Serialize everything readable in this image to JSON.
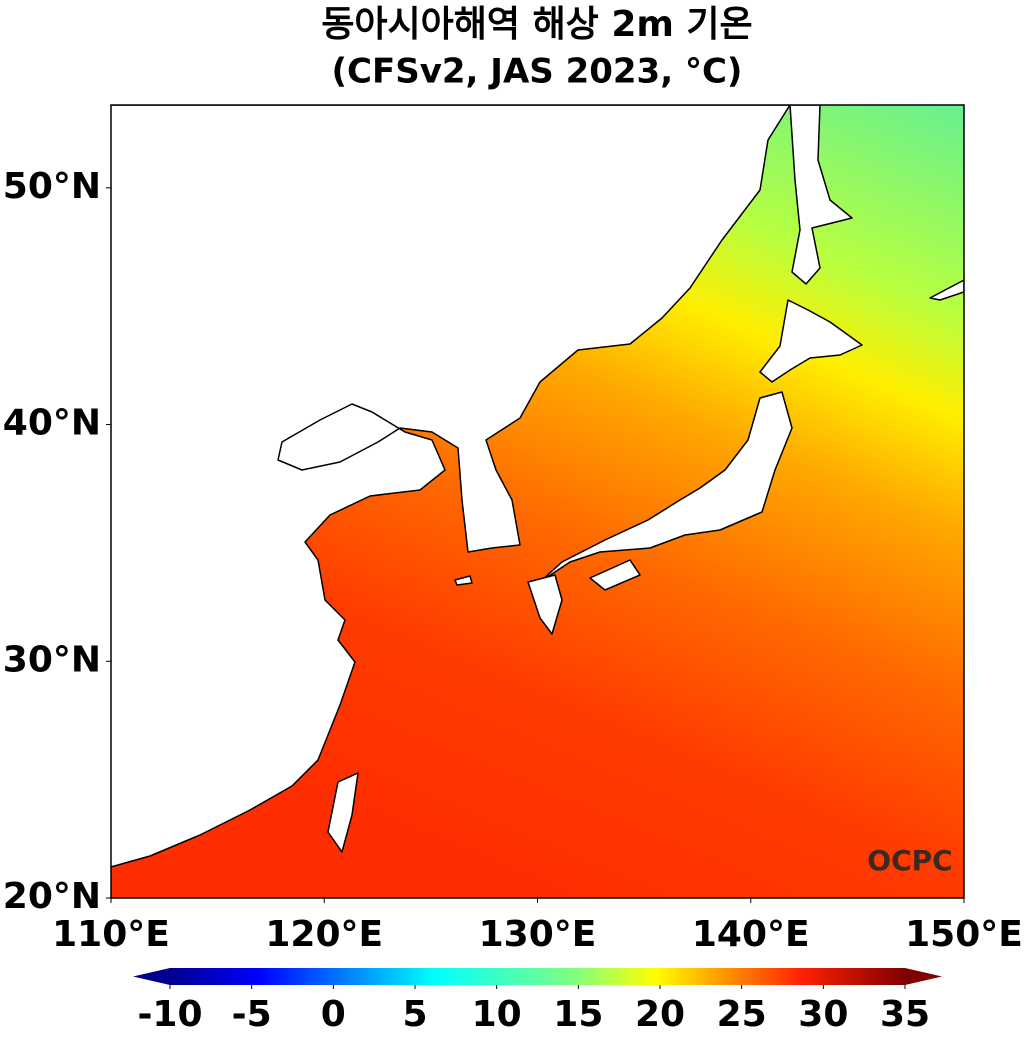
{
  "chart_data": {
    "type": "map",
    "title": "동아시아해역 해상 2m 기온",
    "subtitle": "(CFSv2, JAS 2023, °C)",
    "xlim": [
      110,
      150
    ],
    "ylim": [
      20,
      53.5
    ],
    "xticks": [
      {
        "value": 110,
        "label": "110°E"
      },
      {
        "value": 120,
        "label": "120°E"
      },
      {
        "value": 130,
        "label": "130°E"
      },
      {
        "value": 140,
        "label": "140°E"
      },
      {
        "value": 150,
        "label": "150°E"
      }
    ],
    "yticks": [
      {
        "value": 20,
        "label": "20°N"
      },
      {
        "value": 30,
        "label": "30°N"
      },
      {
        "value": 40,
        "label": "40°N"
      },
      {
        "value": 50,
        "label": "50°N"
      }
    ],
    "colorbar": {
      "lim": [
        -10,
        35
      ],
      "ticks": [
        -10,
        -5,
        0,
        5,
        10,
        15,
        20,
        25,
        30,
        35
      ]
    },
    "watermark": "OCPC"
  }
}
